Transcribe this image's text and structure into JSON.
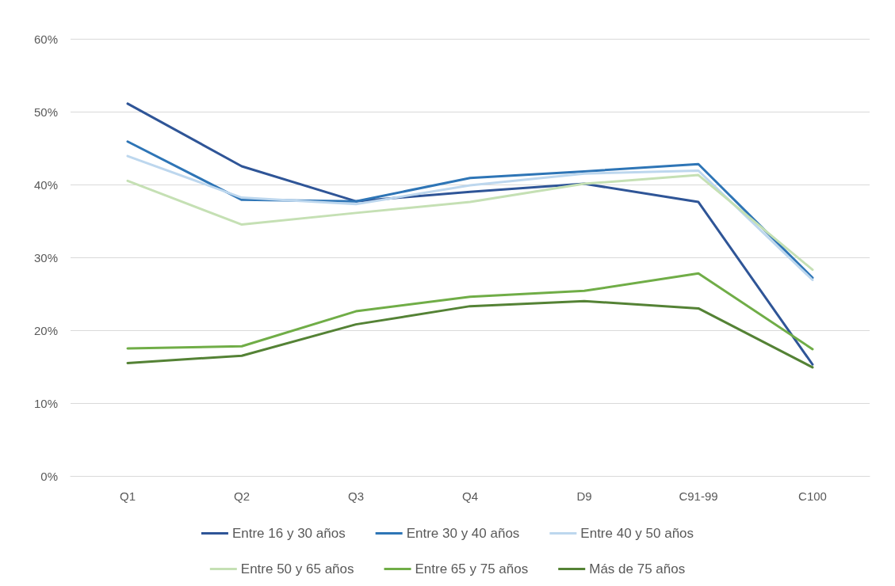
{
  "chart_data": {
    "type": "line",
    "categories": [
      "Q1",
      "Q2",
      "Q3",
      "Q4",
      "D9",
      "C91-99",
      "C100"
    ],
    "series": [
      {
        "name": "Entre 16 y 30 años",
        "color": "#2f5597",
        "values": [
          51.1,
          42.5,
          37.7,
          39.0,
          40.1,
          37.6,
          15.3
        ]
      },
      {
        "name": "Entre 30 y 40 años",
        "color": "#2e75b6",
        "values": [
          45.9,
          37.9,
          37.7,
          40.9,
          41.8,
          42.8,
          27.2
        ]
      },
      {
        "name": "Entre 40 y 50 años",
        "color": "#bdd7ee",
        "values": [
          43.9,
          38.2,
          37.3,
          39.9,
          41.5,
          41.9,
          26.9
        ]
      },
      {
        "name": "Entre 50 y 65 años",
        "color": "#c5e0b4",
        "values": [
          40.5,
          34.5,
          36.1,
          37.6,
          40.1,
          41.3,
          28.3
        ]
      },
      {
        "name": "Entre 65 y 75 años",
        "color": "#70ad47",
        "values": [
          17.5,
          17.8,
          22.6,
          24.6,
          25.4,
          27.8,
          17.4
        ]
      },
      {
        "name": "Más de 75 años",
        "color": "#548235",
        "values": [
          15.5,
          16.5,
          20.8,
          23.3,
          24.0,
          23.0,
          14.9
        ]
      }
    ],
    "ylim": [
      0,
      60
    ],
    "yticks": [
      {
        "value": 0,
        "label": "0%"
      },
      {
        "value": 10,
        "label": "10%"
      },
      {
        "value": 20,
        "label": "20%"
      },
      {
        "value": 30,
        "label": "30%"
      },
      {
        "value": 40,
        "label": "40%"
      },
      {
        "value": 50,
        "label": "50%"
      },
      {
        "value": 60,
        "label": "60%"
      }
    ],
    "grid": "y",
    "legend": "bottom",
    "marker": "none",
    "line_style": "solid"
  }
}
